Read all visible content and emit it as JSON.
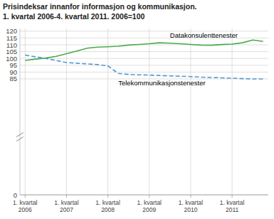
{
  "chart_data": {
    "type": "line",
    "title": "Prisindeksar innanfor informasjon og kommunikasjon.",
    "subtitle": "1. kvartal 2006-4. kvartal 2011. 2006=100",
    "categories": [
      "1. kvartal\n2006",
      null,
      null,
      null,
      "1. kvartal\n2007",
      null,
      null,
      null,
      "1. kvartal\n2008",
      null,
      null,
      null,
      "1. kvartal\n2009",
      null,
      null,
      null,
      "1. kvartal\n2010",
      null,
      null,
      null,
      "1. kvartal\n2011",
      null,
      null,
      null
    ],
    "series": [
      {
        "name": "Datakonsulenttenester",
        "color": "#4aaa4a",
        "line_style": "solid",
        "values": [
          98.5,
          99.5,
          100.3,
          101.5,
          103.5,
          105.5,
          107.5,
          108.3,
          108.6,
          109.0,
          109.8,
          110.3,
          110.8,
          111.5,
          111.2,
          110.8,
          110.3,
          109.8,
          109.7,
          110.2,
          110.5,
          111.5,
          113.5,
          112.5
        ]
      },
      {
        "name": "Telekommunikasjonstenester",
        "color": "#5599cc",
        "line_style": "dashed",
        "values": [
          102.5,
          101.2,
          100.0,
          98.5,
          97.0,
          96.5,
          96.0,
          95.5,
          94.5,
          89.0,
          88.3,
          88.0,
          87.8,
          87.5,
          87.2,
          87.0,
          86.7,
          86.3,
          86.0,
          85.8,
          85.5,
          85.2,
          85.0,
          85.0
        ]
      }
    ],
    "ylim": [
      0,
      122
    ],
    "yticks": [
      0,
      85,
      90,
      95,
      100,
      105,
      110,
      115,
      120
    ],
    "grid": true
  }
}
